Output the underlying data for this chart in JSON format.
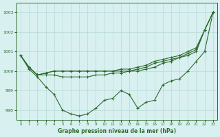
{
  "x": [
    0,
    1,
    2,
    3,
    4,
    5,
    6,
    7,
    8,
    9,
    10,
    11,
    12,
    13,
    14,
    15,
    16,
    17,
    18,
    19,
    20,
    21,
    22,
    23
  ],
  "line1": [
    1000.8,
    1000.2,
    999.8,
    999.8,
    999.8,
    999.7,
    999.7,
    999.7,
    999.7,
    999.8,
    999.8,
    999.9,
    999.9,
    1000.0,
    1000.0,
    1000.1,
    1000.2,
    1000.4,
    1000.5,
    1000.7,
    1000.9,
    1001.1,
    1002.1,
    1003.0
  ],
  "line2": [
    1000.8,
    1000.2,
    999.8,
    999.9,
    1000.0,
    1000.0,
    1000.0,
    1000.0,
    1000.0,
    1000.0,
    1000.0,
    1000.0,
    1000.0,
    1000.0,
    1000.1,
    1000.2,
    1000.4,
    1000.5,
    1000.6,
    1000.7,
    1000.8,
    1001.0,
    1002.1,
    1003.0
  ],
  "line3": [
    1000.8,
    1000.2,
    999.8,
    999.9,
    1000.0,
    1000.0,
    1000.0,
    1000.0,
    1000.0,
    1000.0,
    1000.0,
    1000.0,
    1000.1,
    1000.1,
    1000.2,
    1000.3,
    1000.5,
    1000.6,
    1000.7,
    1000.8,
    1001.0,
    1001.2,
    1002.1,
    1003.0
  ],
  "line4": [
    1000.8,
    1000.1,
    999.7,
    999.2,
    998.8,
    998.0,
    997.8,
    997.7,
    997.8,
    998.1,
    998.5,
    998.6,
    999.0,
    998.8,
    998.1,
    998.4,
    998.5,
    999.3,
    999.5,
    999.6,
    1000.0,
    1000.5,
    1001.0,
    1003.0
  ],
  "line_color": "#2d6a2d",
  "bg_color": "#d8f0f0",
  "grid_color": "#b8d8d8",
  "xlabel": "Graphe pression niveau de la mer (hPa)",
  "ylim": [
    997.5,
    1003.5
  ],
  "xlim": [
    -0.5,
    23.5
  ],
  "yticks": [
    998,
    999,
    1000,
    1001,
    1002,
    1003
  ],
  "xticks": [
    0,
    1,
    2,
    3,
    4,
    5,
    6,
    7,
    8,
    9,
    10,
    11,
    12,
    13,
    14,
    15,
    16,
    17,
    18,
    19,
    20,
    21,
    22,
    23
  ],
  "marker_size": 3,
  "line_width": 0.8,
  "figsize": [
    3.2,
    2.0
  ],
  "dpi": 100
}
